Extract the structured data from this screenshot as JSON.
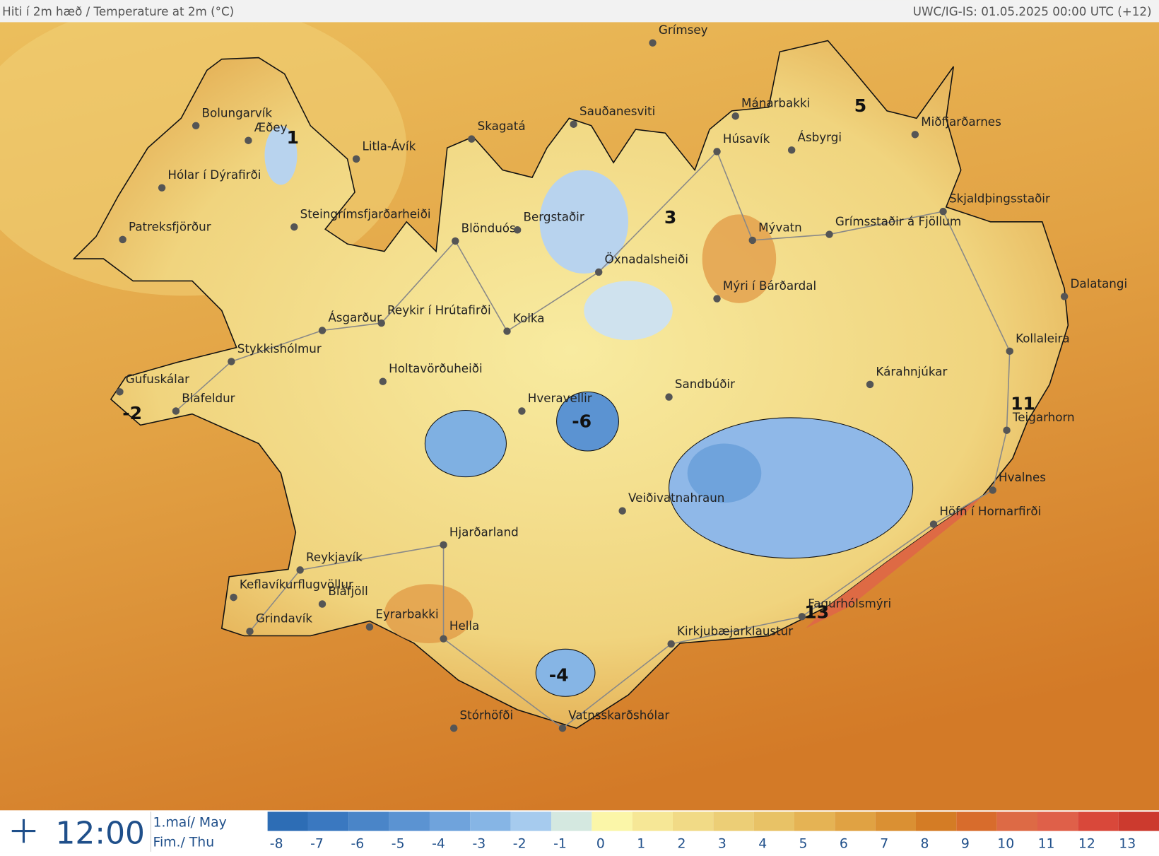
{
  "header": {
    "title": "Hiti í 2m hæð / Temperature at 2m (°C)",
    "source": "UWC/IG-IS: 01.05.2025 00:00 UTC (+12)"
  },
  "stations": [
    "Grímsey",
    "Bolungarvík",
    "Æðey",
    "Litla-Ávík",
    "Hólar í Dýrafirði",
    "Steingrímsfjarðarheiði",
    "Patreksfjörður",
    "Skagatá",
    "Sauðanesviti",
    "Mánarbakki",
    "Húsavík",
    "Ásbyrgi",
    "Miðfjarðarnes",
    "Skjaldþingsstaðir",
    "Grímsstaðir á Fjöllum",
    "Blönduós",
    "Bergstaðir",
    "Mývatn",
    "Öxnadalsheiði",
    "Mýri í Bárðardal",
    "Dalatangi",
    "Ásgarður",
    "Reykir í Hrútafirði",
    "Kolka",
    "Kollaleira",
    "Stykkishólmur",
    "Holtavörðuheiði",
    "Kárahnjúkar",
    "Sandbúðir",
    "Gufuskálar",
    "Blafeldur",
    "Hveravellir",
    "Teigarhorn",
    "Hvalnes",
    "Veiðivatnahraun",
    "Höfn í Hornarfirði",
    "Hjarðarland",
    "Reykjavík",
    "Keflavíkurflugvöllur",
    "Bláfjöll",
    "Grindavík",
    "Eyrarbakki",
    "Hella",
    "Fagurhólsmýri",
    "Kirkjubæjarklaustur",
    "Stórhöfði",
    "Vatnsskarðshólar"
  ],
  "temperature_labels": [
    1,
    5,
    3,
    -2,
    -6,
    -4,
    11,
    13
  ],
  "footer": {
    "time": "12:00",
    "date": "1.maí/ May",
    "day": "Fim./ Thu"
  },
  "legend": {
    "ticks": [
      -8,
      -7,
      -6,
      -5,
      -4,
      -3,
      -2,
      -1,
      0,
      1,
      2,
      3,
      4,
      5,
      6,
      7,
      8,
      9,
      10,
      11,
      12,
      13
    ],
    "colors": [
      "#2d6db5",
      "#3a78c0",
      "#4a85c8",
      "#5b93d2",
      "#6fa3dc",
      "#86b5e5",
      "#a6cbee",
      "#d4e8e0",
      "#fbf6a8",
      "#f6e796",
      "#f1da86",
      "#ecce76",
      "#e8c266",
      "#e5b354",
      "#e0a243",
      "#da9033",
      "#d47c25",
      "#d86c2c",
      "#dd6a45",
      "#df6049",
      "#d9483a",
      "#cc3a2e"
    ]
  }
}
